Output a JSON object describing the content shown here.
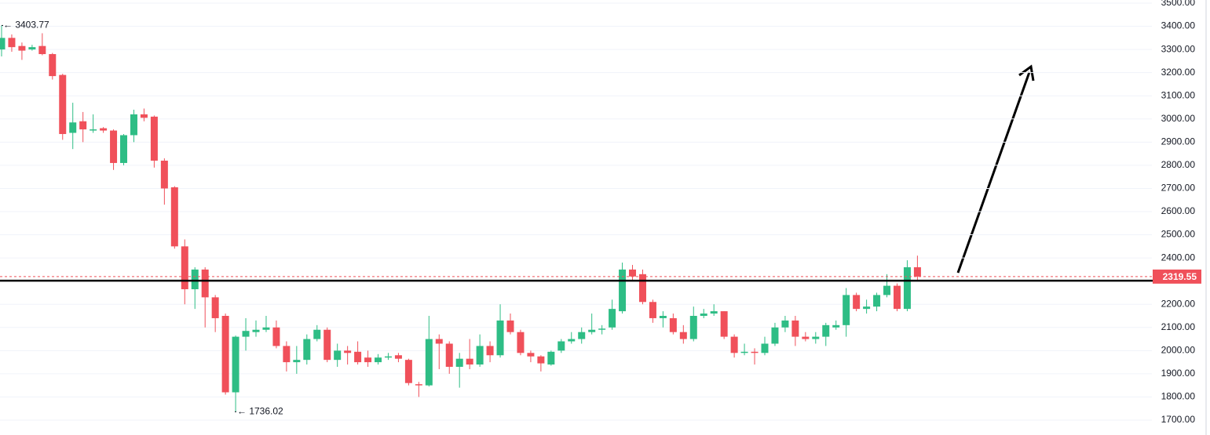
{
  "chart_data": {
    "type": "candlestick",
    "up_color": "#2ebd85",
    "down_color": "#f0505a",
    "ylim": [
      1700,
      3500
    ],
    "yticks": [
      {
        "value": 1700,
        "label": "1700.00"
      },
      {
        "value": 1800,
        "label": "1800.00"
      },
      {
        "value": 1900,
        "label": "1900.00"
      },
      {
        "value": 2000,
        "label": "2000.00"
      },
      {
        "value": 2100,
        "label": "2100.00"
      },
      {
        "value": 2200,
        "label": "2200.00"
      },
      {
        "value": 2400,
        "label": "2400.00"
      },
      {
        "value": 2500,
        "label": "2500.00"
      },
      {
        "value": 2600,
        "label": "2600.00"
      },
      {
        "value": 2700,
        "label": "2700.00"
      },
      {
        "value": 2800,
        "label": "2800.00"
      },
      {
        "value": 2900,
        "label": "2900.00"
      },
      {
        "value": 3000,
        "label": "3000.00"
      },
      {
        "value": 3100,
        "label": "3100.00"
      },
      {
        "value": 3200,
        "label": "3200.00"
      },
      {
        "value": 3300,
        "label": "3300.00"
      },
      {
        "value": 3400,
        "label": "3400.00"
      },
      {
        "value": 3500,
        "label": "3500.00"
      }
    ],
    "grid": true,
    "open": [
      3300,
      3350,
      3315,
      3300,
      3315,
      3280,
      3190,
      2940,
      2990,
      2950,
      2960,
      2950,
      2810,
      2930,
      3020,
      3010,
      2820,
      2705,
      2450,
      2265,
      2350,
      2230,
      2150,
      1820,
      2060,
      2080,
      2090,
      2100,
      2020,
      1950,
      1960,
      2050,
      2090,
      1960,
      2000,
      1995,
      1970,
      1950,
      1970,
      1980,
      1960,
      1855,
      1850,
      2050,
      2030,
      1930,
      1965,
      1940,
      2020,
      1980,
      2130,
      2080,
      1990,
      1975,
      1940,
      2000,
      2040,
      2050,
      2080,
      2090,
      2100,
      2170,
      2350,
      2330,
      2210,
      2140,
      2140,
      2080,
      2050,
      2150,
      2160,
      2170,
      2060,
      1990,
      1995,
      1990,
      2030,
      2100,
      2130,
      2060,
      2050,
      2060,
      2100,
      2110,
      2240,
      2180,
      2190,
      2240,
      2280,
      2180,
      2360
    ],
    "high": [
      3403.77,
      3365,
      3330,
      3320,
      3370,
      3285,
      3195,
      3070,
      3030,
      3020,
      2965,
      2955,
      2935,
      3040,
      3045,
      3015,
      2830,
      2710,
      2480,
      2360,
      2360,
      2240,
      2160,
      2065,
      2140,
      2130,
      2150,
      2130,
      2040,
      2020,
      2070,
      2110,
      2100,
      2030,
      2020,
      2040,
      2000,
      1985,
      1990,
      1990,
      1965,
      1865,
      2150,
      2070,
      2040,
      1990,
      2050,
      2070,
      2040,
      2200,
      2160,
      2090,
      2000,
      1980,
      2000,
      2050,
      2080,
      2100,
      2160,
      2110,
      2220,
      2380,
      2370,
      2350,
      2220,
      2170,
      2160,
      2110,
      2190,
      2180,
      2200,
      2170,
      2070,
      2030,
      2010,
      2060,
      2120,
      2150,
      2150,
      2080,
      2080,
      2120,
      2130,
      2270,
      2250,
      2220,
      2250,
      2330,
      2290,
      2390,
      2410
    ],
    "low": [
      3270,
      3290,
      3255,
      3295,
      3275,
      3170,
      2910,
      2870,
      2900,
      2940,
      2940,
      2780,
      2800,
      2900,
      2990,
      2790,
      2630,
      2440,
      2200,
      2180,
      2100,
      2080,
      1810,
      1736.02,
      2000,
      2060,
      2080,
      2010,
      1910,
      1900,
      1940,
      2040,
      1950,
      1930,
      1940,
      1940,
      1930,
      1940,
      1960,
      1950,
      1850,
      1800,
      1845,
      1920,
      1900,
      1840,
      1920,
      1930,
      1950,
      1970,
      2070,
      1980,
      1950,
      1910,
      1935,
      1990,
      2030,
      2030,
      2070,
      2070,
      2090,
      2160,
      2300,
      2200,
      2120,
      2100,
      2070,
      2030,
      2040,
      2140,
      2150,
      2050,
      1970,
      1980,
      1940,
      1980,
      2020,
      2080,
      2020,
      2040,
      2030,
      2020,
      2090,
      2060,
      2170,
      2160,
      2170,
      2230,
      2170,
      2170,
      2300
    ],
    "close": [
      3350,
      3310,
      3295,
      3310,
      3280,
      3185,
      2935,
      2985,
      2955,
      2955,
      2950,
      2810,
      2930,
      3020,
      3005,
      2820,
      2700,
      2450,
      2265,
      2350,
      2230,
      2140,
      1820,
      2060,
      2085,
      2090,
      2100,
      2020,
      1950,
      1960,
      2050,
      2090,
      1960,
      2000,
      1990,
      1950,
      1950,
      1970,
      1975,
      1965,
      1860,
      1850,
      2050,
      2030,
      1930,
      1965,
      1940,
      2020,
      1980,
      2130,
      2080,
      1990,
      1975,
      1945,
      1995,
      2040,
      2050,
      2080,
      2090,
      2095,
      2180,
      2350,
      2320,
      2210,
      2140,
      2150,
      2080,
      2050,
      2150,
      2160,
      2170,
      2060,
      1990,
      1995,
      1990,
      2030,
      2100,
      2130,
      2060,
      2050,
      2060,
      2110,
      2110,
      2240,
      2180,
      2190,
      2240,
      2280,
      2180,
      2360,
      2319.55
    ],
    "high_marker": {
      "value": 3403.77,
      "label": "← 3403.77"
    },
    "low_marker": {
      "value": 1736.02,
      "label": "← 1736.02"
    },
    "last_price": 2319.55,
    "support_level": 2302
  }
}
